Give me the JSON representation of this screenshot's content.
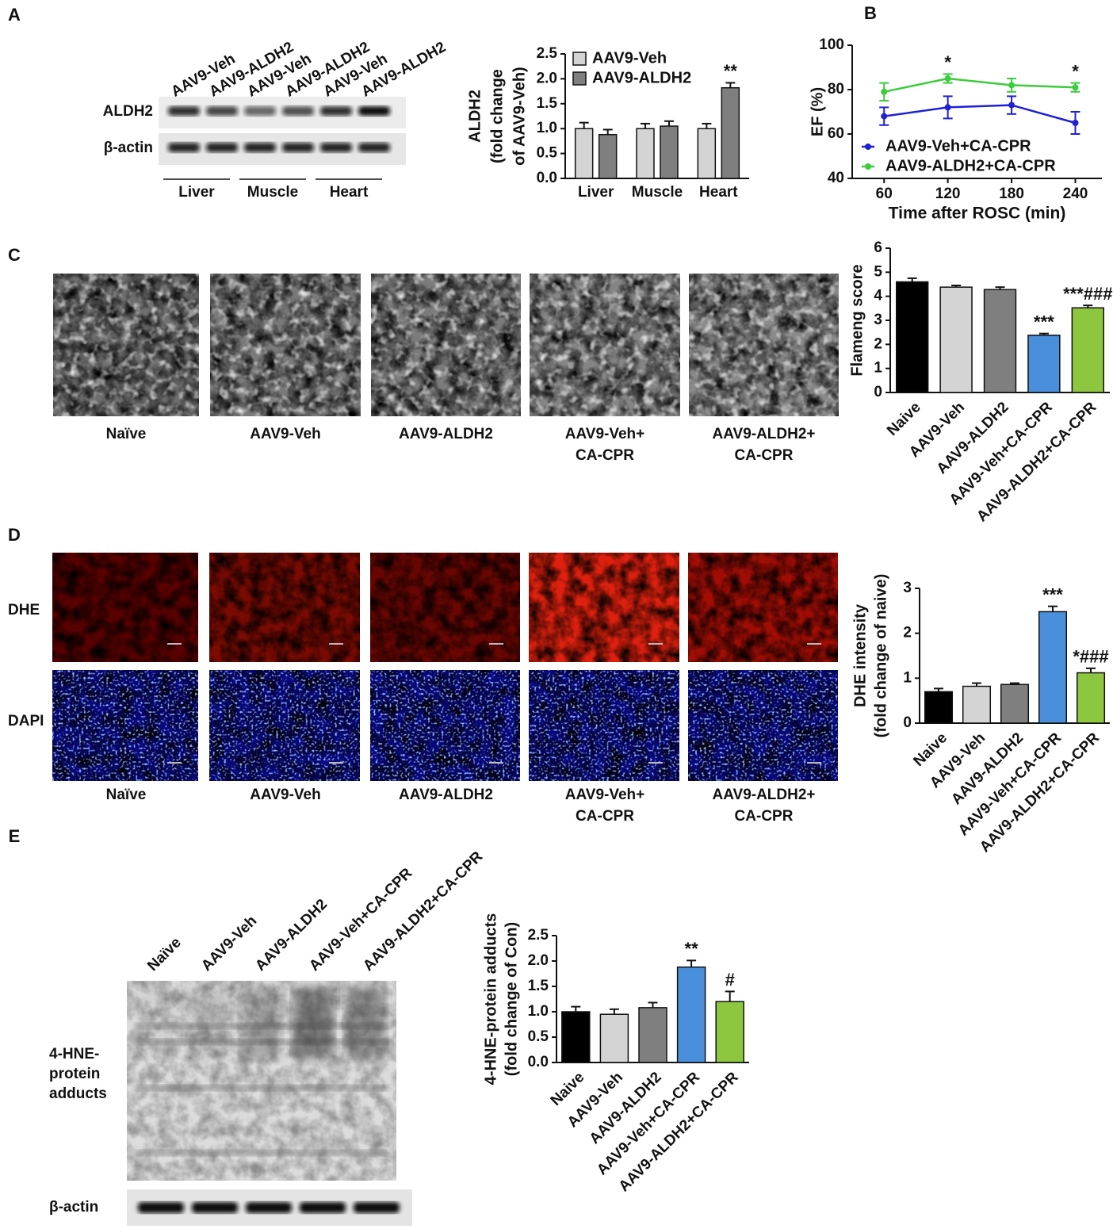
{
  "figure": {
    "panel_labels": [
      "A",
      "B",
      "C",
      "D",
      "E"
    ],
    "panel_a_blot": {
      "lanes": [
        "AAV9-Veh",
        "AAV9-ALDH2",
        "AAV9-Veh",
        "AAV9-ALDH2",
        "AAV9-Veh",
        "AAV9-ALDH2"
      ],
      "rows": [
        "ALDH2",
        "β-actin"
      ],
      "groups": [
        "Liver",
        "Muscle",
        "Heart"
      ]
    },
    "panel_c_images": {
      "captions": [
        [
          "Naïve"
        ],
        [
          "AAV9-Veh"
        ],
        [
          "AAV9-ALDH2"
        ],
        [
          "AAV9-Veh+",
          "CA-CPR"
        ],
        [
          "AAV9-ALDH2+",
          "CA-CPR"
        ]
      ]
    },
    "panel_d_images": {
      "rows": [
        "DHE",
        "DAPI"
      ],
      "captions": [
        [
          "Naïve"
        ],
        [
          "AAV9-Veh"
        ],
        [
          "AAV9-ALDH2"
        ],
        [
          "AAV9-Veh+",
          "CA-CPR"
        ],
        [
          "AAV9-ALDH2+",
          "CA-CPR"
        ]
      ]
    },
    "panel_e_blot": {
      "lanes": [
        "Naïve",
        "AAV9-Veh",
        "AAV9-ALDH2",
        "AAV9-Veh+CA-CPR",
        "AAV9-ALDH2+CA-CPR"
      ],
      "rows": [
        [
          "4-HNE-",
          "protein",
          "adducts"
        ],
        [
          "β-actin"
        ]
      ]
    }
  },
  "chart_data": [
    {
      "type": "bar",
      "y_label": [
        "ALDH2",
        "(fold change",
        "of AAV9-Veh)"
      ],
      "categories": [
        "Liver",
        "Muscle",
        "Heart"
      ],
      "series": [
        {
          "name": "AAV9-Veh",
          "color": "#d4d4d4",
          "values": [
            1.0,
            1.0,
            1.0
          ],
          "errors": [
            0.12,
            0.1,
            0.1
          ],
          "annotations": [
            null,
            null,
            null
          ]
        },
        {
          "name": "AAV9-ALDH2",
          "color": "#7f7f7f",
          "values": [
            0.88,
            1.05,
            1.82
          ],
          "errors": [
            0.1,
            0.1,
            0.1
          ],
          "annotations": [
            null,
            null,
            "**"
          ]
        }
      ],
      "ylim": [
        0,
        2.5
      ],
      "yticks": [
        {
          "value": 0,
          "label": "0.0"
        },
        {
          "value": 0.5,
          "label": "0.5"
        },
        {
          "value": 1,
          "label": "1.0"
        },
        {
          "value": 1.5,
          "label": "1.5"
        },
        {
          "value": 2,
          "label": "2.0"
        },
        {
          "value": 2.5,
          "label": "2.5"
        }
      ],
      "legend": "upper left"
    },
    {
      "type": "line",
      "x_label": "Time after ROSC (min)",
      "y_label": [
        "EF (%)"
      ],
      "x": [
        60,
        120,
        180,
        240
      ],
      "series": [
        {
          "name": "AAV9-Veh+CA-CPR",
          "color": "#1f1fd6",
          "values": [
            68,
            72,
            73,
            65
          ],
          "errors": [
            4,
            5,
            4,
            5
          ],
          "annotations": [
            null,
            null,
            null,
            null
          ]
        },
        {
          "name": "AAV9-ALDH2+CA-CPR",
          "color": "#3ccc3c",
          "values": [
            79,
            85,
            82,
            81
          ],
          "errors": [
            4,
            2,
            3,
            2
          ],
          "annotations": [
            null,
            "*",
            null,
            "*"
          ]
        }
      ],
      "xlim": [
        30,
        265
      ],
      "xticks": [
        60,
        120,
        180,
        240
      ],
      "ylim": [
        40,
        100
      ],
      "yticks": [
        40,
        60,
        80,
        100
      ],
      "legend": "lower left"
    },
    {
      "type": "bar",
      "y_label": [
        "Flameng score"
      ],
      "categories": [
        "Naive",
        "AAV9-Veh",
        "AAV9-ALDH2",
        "AAV9-Veh+CA-CPR",
        "AAV9-ALDH2+CA-CPR"
      ],
      "values": [
        4.6,
        4.38,
        4.28,
        2.38,
        3.52
      ],
      "errors": [
        0.15,
        0.07,
        0.1,
        0.07,
        0.1
      ],
      "annotations": [
        null,
        null,
        null,
        "***",
        "***###"
      ],
      "colors": [
        "#000000",
        "#d4d4d4",
        "#7f7f7f",
        "#4a8fdc",
        "#8dc63f"
      ],
      "ylim": [
        0,
        6
      ],
      "yticks": [
        0,
        1,
        2,
        3,
        4,
        5,
        6
      ]
    },
    {
      "type": "bar",
      "y_label": [
        "DHE intensity",
        "(fold change of naive)"
      ],
      "categories": [
        "Naive",
        "AAV9-Veh",
        "AAV9-ALDH2",
        "AAV9-Veh+CA-CPR",
        "AAV9-ALDH2+CA-CPR"
      ],
      "values": [
        0.7,
        0.82,
        0.86,
        2.48,
        1.12
      ],
      "errors": [
        0.07,
        0.07,
        0.03,
        0.12,
        0.1
      ],
      "annotations": [
        null,
        null,
        null,
        "***",
        "*###"
      ],
      "colors": [
        "#000000",
        "#d4d4d4",
        "#7f7f7f",
        "#4a8fdc",
        "#8dc63f"
      ],
      "ylim": [
        0,
        3
      ],
      "yticks": [
        0,
        1,
        2,
        3
      ]
    },
    {
      "type": "bar",
      "y_label": [
        "4-HNE-protein adducts",
        "(fold change of Con)"
      ],
      "categories": [
        "Naive",
        "AAV9-Veh",
        "AAV9-ALDH2",
        "AAV9-Veh+CA-CPR",
        "AAV9-ALDH2+CA-CPR"
      ],
      "values": [
        1.0,
        0.95,
        1.08,
        1.88,
        1.2
      ],
      "errors": [
        0.1,
        0.1,
        0.1,
        0.13,
        0.2
      ],
      "annotations": [
        null,
        null,
        null,
        "**",
        "#"
      ],
      "colors": [
        "#000000",
        "#d4d4d4",
        "#7f7f7f",
        "#4a8fdc",
        "#8dc63f"
      ],
      "ylim": [
        0,
        2.5
      ],
      "yticks": [
        {
          "value": 0,
          "label": "0.0"
        },
        {
          "value": 0.5,
          "label": "0.5"
        },
        {
          "value": 1,
          "label": "1.0"
        },
        {
          "value": 1.5,
          "label": "1.5"
        },
        {
          "value": 2,
          "label": "2.0"
        },
        {
          "value": 2.5,
          "label": "2.5"
        }
      ]
    }
  ]
}
